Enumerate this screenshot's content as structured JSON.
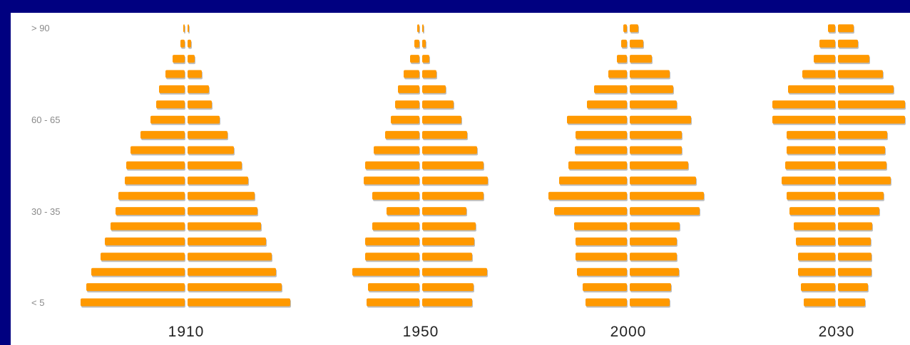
{
  "colors": {
    "background": "#000080",
    "panel": "#ffffff",
    "bar": "#FF9900",
    "bar_shadow": "#BDBDBD"
  },
  "chart_data": {
    "type": "bar",
    "orientation": "horizontal",
    "layout": "population pyramids (mirrored left/right)",
    "title": "",
    "xlabel": "",
    "ylabel": "",
    "age_groups_bottom_to_top": [
      "< 5",
      "",
      "",
      "",
      "",
      "",
      "30 - 35",
      "",
      "",
      "",
      "",
      "",
      "60 - 65",
      "",
      "",
      "",
      "",
      "",
      "> 90"
    ],
    "y_tick_labels": [
      "> 90",
      "60 - 65",
      "30 - 35",
      "< 5"
    ],
    "units": "relative",
    "pyramids": [
      {
        "year": "1910",
        "left": [
          146,
          138,
          131,
          118,
          112,
          104,
          97,
          93,
          84,
          82,
          76,
          62,
          48,
          40,
          36,
          27,
          17,
          6,
          2
        ],
        "right": [
          144,
          132,
          124,
          118,
          110,
          103,
          98,
          94,
          85,
          76,
          65,
          56,
          45,
          34,
          30,
          20,
          10,
          5,
          2
        ]
      },
      {
        "year": "1950",
        "left": [
          74,
          72,
          94,
          76,
          76,
          66,
          46,
          66,
          78,
          76,
          64,
          48,
          40,
          34,
          30,
          22,
          13,
          7,
          3
        ],
        "right": [
          70,
          72,
          91,
          70,
          73,
          75,
          62,
          86,
          92,
          86,
          77,
          63,
          55,
          44,
          33,
          20,
          10,
          5,
          2
        ]
      },
      {
        "year": "2000",
        "left": [
          58,
          62,
          70,
          72,
          72,
          74,
          102,
          110,
          95,
          82,
          73,
          72,
          84,
          56,
          46,
          26,
          14,
          8,
          5
        ],
        "right": [
          56,
          58,
          69,
          66,
          66,
          70,
          98,
          104,
          93,
          82,
          73,
          73,
          86,
          66,
          61,
          56,
          31,
          19,
          12
        ]
      },
      {
        "year": "2030",
        "left": [
          44,
          48,
          52,
          52,
          55,
          58,
          64,
          68,
          75,
          70,
          68,
          68,
          88,
          88,
          66,
          46,
          30,
          22,
          10
        ],
        "right": [
          38,
          42,
          47,
          47,
          46,
          48,
          58,
          64,
          74,
          68,
          66,
          69,
          94,
          94,
          78,
          63,
          44,
          28,
          22
        ]
      }
    ]
  }
}
